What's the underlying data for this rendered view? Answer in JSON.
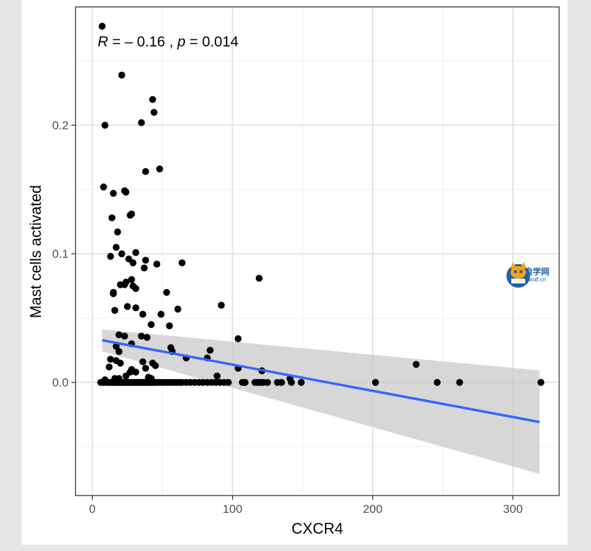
{
  "chart_data": {
    "type": "scatter",
    "xlabel": "CXCR4",
    "ylabel": "Mast cells activated",
    "xlim": [
      -12,
      333
    ],
    "ylim": [
      -0.088,
      0.292
    ],
    "x_ticks": [
      0,
      100,
      200,
      300
    ],
    "y_ticks": [
      0.0,
      0.1,
      0.2
    ],
    "y_tick_labels": [
      "0.0",
      "0.1",
      "0.2"
    ],
    "annotation": {
      "r_label": "R",
      "r_text": " = – 0.16 , ",
      "p_label": "p",
      "p_text": " = 0.014"
    },
    "regression": {
      "x": [
        7,
        319
      ],
      "y": [
        0.0328,
        -0.0308
      ],
      "ci_low": [
        0.0242,
        -0.0712
      ],
      "ci_high": [
        0.0412,
        0.0093
      ],
      "color": "#3366ff"
    },
    "point_color": "#000000",
    "grid": true,
    "points": [
      [
        7,
        0.277
      ],
      [
        21,
        0.239
      ],
      [
        43,
        0.22
      ],
      [
        44,
        0.21
      ],
      [
        9,
        0.2
      ],
      [
        35,
        0.202
      ],
      [
        48,
        0.166
      ],
      [
        38,
        0.164
      ],
      [
        8,
        0.152
      ],
      [
        23,
        0.149
      ],
      [
        24,
        0.148
      ],
      [
        15,
        0.147
      ],
      [
        27,
        0.13
      ],
      [
        28,
        0.131
      ],
      [
        14,
        0.128
      ],
      [
        18,
        0.117
      ],
      [
        17,
        0.105
      ],
      [
        31,
        0.101
      ],
      [
        21,
        0.1
      ],
      [
        13,
        0.098
      ],
      [
        26,
        0.096
      ],
      [
        38,
        0.095
      ],
      [
        64,
        0.093
      ],
      [
        29,
        0.093
      ],
      [
        46,
        0.092
      ],
      [
        37,
        0.089
      ],
      [
        119,
        0.081
      ],
      [
        28,
        0.08
      ],
      [
        24,
        0.078
      ],
      [
        20,
        0.076
      ],
      [
        23,
        0.076
      ],
      [
        29,
        0.075
      ],
      [
        31,
        0.073
      ],
      [
        53,
        0.07
      ],
      [
        15,
        0.069
      ],
      [
        15,
        0.07
      ],
      [
        92,
        0.06
      ],
      [
        25,
        0.059
      ],
      [
        16,
        0.056
      ],
      [
        31,
        0.058
      ],
      [
        61,
        0.057
      ],
      [
        49,
        0.053
      ],
      [
        36,
        0.053
      ],
      [
        55,
        0.044
      ],
      [
        42,
        0.045
      ],
      [
        35,
        0.036
      ],
      [
        23,
        0.036
      ],
      [
        19,
        0.037
      ],
      [
        39,
        0.035
      ],
      [
        104,
        0.034
      ],
      [
        28,
        0.03
      ],
      [
        56,
        0.027
      ],
      [
        17,
        0.028
      ],
      [
        57,
        0.024
      ],
      [
        19,
        0.024
      ],
      [
        84,
        0.025
      ],
      [
        13,
        0.018
      ],
      [
        12,
        0.012
      ],
      [
        17,
        0.017
      ],
      [
        67,
        0.019
      ],
      [
        82,
        0.019
      ],
      [
        36,
        0.016
      ],
      [
        43,
        0.015
      ],
      [
        20,
        0.015
      ],
      [
        45,
        0.013
      ],
      [
        38,
        0.011
      ],
      [
        28,
        0.01
      ],
      [
        104,
        0.011
      ],
      [
        31,
        0.008
      ],
      [
        121,
        0.009
      ],
      [
        27,
        0.008
      ],
      [
        24,
        0.005
      ],
      [
        231,
        0.014
      ],
      [
        40,
        0.004
      ],
      [
        89,
        0.005
      ],
      [
        19,
        0.003
      ],
      [
        42,
        0.003
      ],
      [
        16,
        0.003
      ],
      [
        141,
        0.003
      ],
      [
        9,
        0.002
      ],
      [
        6,
        0
      ],
      [
        8,
        0
      ],
      [
        10,
        0
      ],
      [
        11,
        0
      ],
      [
        12,
        0
      ],
      [
        13,
        0
      ],
      [
        14,
        0
      ],
      [
        15,
        0
      ],
      [
        16,
        0
      ],
      [
        17,
        0
      ],
      [
        18,
        0
      ],
      [
        19,
        0
      ],
      [
        20,
        0
      ],
      [
        21,
        0
      ],
      [
        22,
        0
      ],
      [
        23,
        0
      ],
      [
        24,
        0
      ],
      [
        25,
        0
      ],
      [
        26,
        0
      ],
      [
        27,
        0
      ],
      [
        28,
        0
      ],
      [
        29,
        0
      ],
      [
        30,
        0
      ],
      [
        31,
        0
      ],
      [
        32,
        0
      ],
      [
        33,
        0
      ],
      [
        34,
        0
      ],
      [
        35,
        0
      ],
      [
        36,
        0
      ],
      [
        37,
        0
      ],
      [
        38,
        0
      ],
      [
        39,
        0
      ],
      [
        40,
        0
      ],
      [
        41,
        0
      ],
      [
        42,
        0
      ],
      [
        43,
        0
      ],
      [
        44,
        0
      ],
      [
        45,
        0
      ],
      [
        46,
        0
      ],
      [
        48,
        0
      ],
      [
        50,
        0
      ],
      [
        52,
        0
      ],
      [
        54,
        0
      ],
      [
        56,
        0
      ],
      [
        58,
        0
      ],
      [
        60,
        0
      ],
      [
        62,
        0
      ],
      [
        64,
        0
      ],
      [
        67,
        0
      ],
      [
        70,
        0
      ],
      [
        73,
        0
      ],
      [
        76,
        0
      ],
      [
        79,
        0
      ],
      [
        82,
        0
      ],
      [
        85,
        0
      ],
      [
        88,
        0
      ],
      [
        91,
        0
      ],
      [
        94,
        0
      ],
      [
        97,
        0
      ],
      [
        107,
        0
      ],
      [
        109,
        0
      ],
      [
        116,
        0
      ],
      [
        118,
        0
      ],
      [
        120,
        0
      ],
      [
        122,
        0
      ],
      [
        125,
        0
      ],
      [
        132,
        0
      ],
      [
        135,
        0
      ],
      [
        142,
        0
      ],
      [
        149,
        0
      ],
      [
        202,
        0
      ],
      [
        246,
        0
      ],
      [
        262,
        0
      ],
      [
        320,
        0
      ]
    ]
  },
  "logo": {
    "name": "生信自学网",
    "url": "www.biowolf.cn"
  }
}
